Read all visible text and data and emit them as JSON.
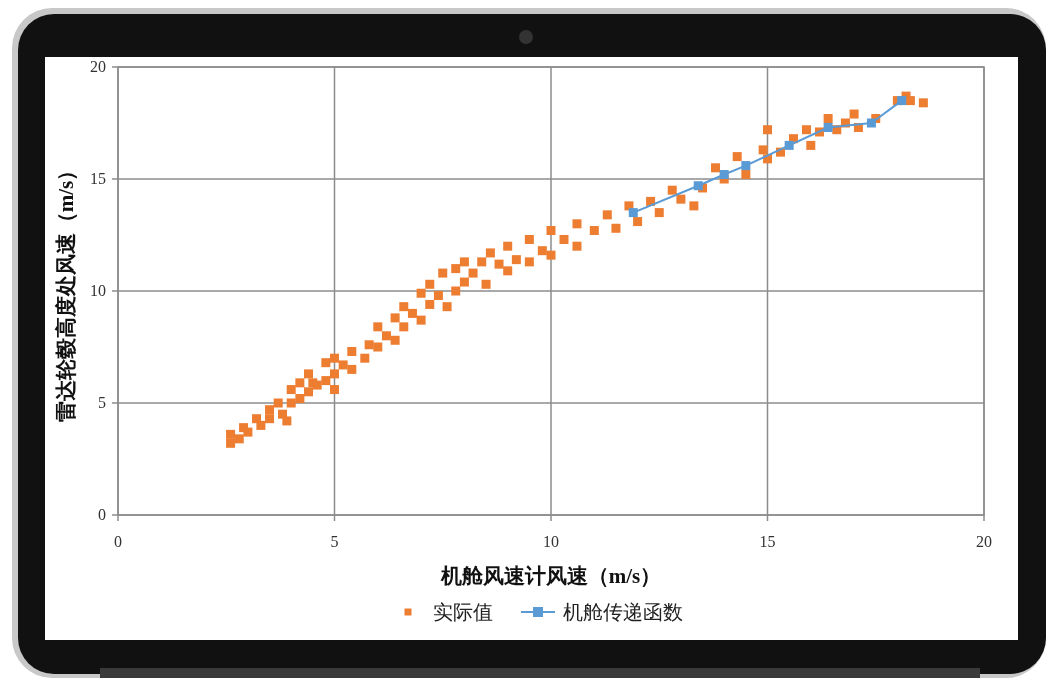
{
  "chart_data": {
    "type": "scatter",
    "xlabel": "机舱风速计风速（m/s）",
    "ylabel": "雷达轮毂高度处风速（m/s）",
    "xlim": [
      0,
      20
    ],
    "ylim": [
      0,
      20
    ],
    "xticks": [
      0,
      5,
      10,
      15,
      20
    ],
    "yticks": [
      0,
      5,
      10,
      15,
      20
    ],
    "grid": true,
    "legend": "bottom",
    "series": [
      {
        "type": "scatter",
        "name": "实际值",
        "color": "#ed7d31",
        "marker": "square",
        "x": [
          2.6,
          2.6,
          2.8,
          2.9,
          3.0,
          3.2,
          3.3,
          3.5,
          3.5,
          3.7,
          3.8,
          3.9,
          4.0,
          4.0,
          4.2,
          4.2,
          4.4,
          4.4,
          4.5,
          4.6,
          4.8,
          4.8,
          5.0,
          5.0,
          5.0,
          5.2,
          5.4,
          5.4,
          5.7,
          5.8,
          6.0,
          6.0,
          6.2,
          6.4,
          6.4,
          6.6,
          6.6,
          6.8,
          7.0,
          7.0,
          7.2,
          7.2,
          7.4,
          7.5,
          7.6,
          7.8,
          7.8,
          8.0,
          8.0,
          8.2,
          8.4,
          8.5,
          8.6,
          8.8,
          9.0,
          9.0,
          9.2,
          9.5,
          9.5,
          9.8,
          10.0,
          10.0,
          10.3,
          10.6,
          10.6,
          11.0,
          11.3,
          11.5,
          11.8,
          12.0,
          12.3,
          12.5,
          12.8,
          13.0,
          13.3,
          13.5,
          13.8,
          14.0,
          14.3,
          14.5,
          14.9,
          15.0,
          15.0,
          15.3,
          15.6,
          15.9,
          16.0,
          16.2,
          16.4,
          16.6,
          16.8,
          17.0,
          17.1,
          17.5,
          18.0,
          18.2,
          18.3,
          18.6
        ],
        "values": [
          3.2,
          3.6,
          3.4,
          3.9,
          3.7,
          4.3,
          4.0,
          4.7,
          4.3,
          5.0,
          4.5,
          4.2,
          5.6,
          5.0,
          5.9,
          5.2,
          6.3,
          5.5,
          5.9,
          5.8,
          6.8,
          6.0,
          7.0,
          6.3,
          5.6,
          6.7,
          7.3,
          6.5,
          7.0,
          7.6,
          8.4,
          7.5,
          8.0,
          8.8,
          7.8,
          9.3,
          8.4,
          9.0,
          9.9,
          8.7,
          10.3,
          9.4,
          9.8,
          10.8,
          9.3,
          11.0,
          10.0,
          11.3,
          10.4,
          10.8,
          11.3,
          10.3,
          11.7,
          11.2,
          12.0,
          10.9,
          11.4,
          12.3,
          11.3,
          11.8,
          12.7,
          11.6,
          12.3,
          13.0,
          12.0,
          12.7,
          13.4,
          12.8,
          13.8,
          13.1,
          14.0,
          13.5,
          14.5,
          14.1,
          13.8,
          14.6,
          15.5,
          15.0,
          16.0,
          15.2,
          16.3,
          17.2,
          15.9,
          16.2,
          16.8,
          17.2,
          16.5,
          17.1,
          17.7,
          17.2,
          17.5,
          17.9,
          17.3,
          17.7,
          18.5,
          18.7,
          18.5,
          18.4
        ]
      },
      {
        "type": "line",
        "name": "机舱传递函数",
        "color": "#5b9bd5",
        "marker": "square",
        "x": [
          11.9,
          13.4,
          14.0,
          14.5,
          15.5,
          16.4,
          17.4,
          18.1
        ],
        "values": [
          13.5,
          14.7,
          15.2,
          15.6,
          16.5,
          17.3,
          17.5,
          18.5
        ]
      }
    ]
  }
}
